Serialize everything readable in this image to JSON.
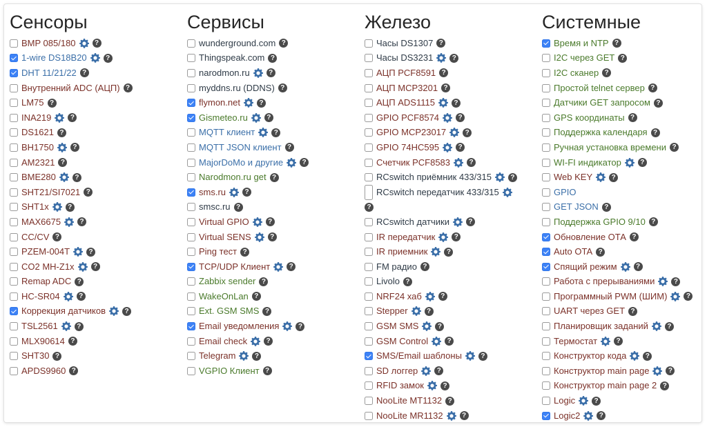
{
  "columns": [
    {
      "title": "Сенсоры",
      "items": [
        {
          "label": "BMP 085/180",
          "checked": false,
          "gear": true,
          "help": true,
          "color": "sensor"
        },
        {
          "label": "1-wire DS18B20",
          "checked": true,
          "gear": true,
          "help": true,
          "color": "blue"
        },
        {
          "label": "DHT 11/21/22",
          "checked": true,
          "gear": false,
          "help": true,
          "color": "blue"
        },
        {
          "label": "Внутренний ADC (АЦП)",
          "checked": false,
          "gear": false,
          "help": true,
          "color": "sensor"
        },
        {
          "label": "LM75",
          "checked": false,
          "gear": false,
          "help": true,
          "color": "sensor"
        },
        {
          "label": "INA219",
          "checked": false,
          "gear": true,
          "help": true,
          "color": "sensor"
        },
        {
          "label": "DS1621",
          "checked": false,
          "gear": false,
          "help": true,
          "color": "sensor"
        },
        {
          "label": "BH1750",
          "checked": false,
          "gear": true,
          "help": true,
          "color": "sensor"
        },
        {
          "label": "AM2321",
          "checked": false,
          "gear": false,
          "help": true,
          "color": "sensor"
        },
        {
          "label": "BME280",
          "checked": false,
          "gear": true,
          "help": true,
          "color": "sensor"
        },
        {
          "label": "SHT21/SI7021",
          "checked": false,
          "gear": false,
          "help": true,
          "color": "sensor"
        },
        {
          "label": "SHT1x",
          "checked": false,
          "gear": true,
          "help": true,
          "color": "sensor"
        },
        {
          "label": "MAX6675",
          "checked": false,
          "gear": true,
          "help": true,
          "color": "sensor"
        },
        {
          "label": "CC/CV",
          "checked": false,
          "gear": false,
          "help": true,
          "color": "sensor"
        },
        {
          "label": "PZEM-004T",
          "checked": false,
          "gear": true,
          "help": true,
          "color": "sensor"
        },
        {
          "label": "CO2 MH-Z1x",
          "checked": false,
          "gear": true,
          "help": true,
          "color": "sensor"
        },
        {
          "label": "Remap ADC",
          "checked": false,
          "gear": false,
          "help": true,
          "color": "sensor"
        },
        {
          "label": "HC-SR04",
          "checked": false,
          "gear": true,
          "help": true,
          "color": "sensor"
        },
        {
          "label": "Коррекция датчиков",
          "checked": true,
          "gear": true,
          "help": true,
          "color": "sensor"
        },
        {
          "label": "TSL2561",
          "checked": false,
          "gear": true,
          "help": true,
          "color": "sensor"
        },
        {
          "label": "MLX90614",
          "checked": false,
          "gear": false,
          "help": true,
          "color": "sensor"
        },
        {
          "label": "SHT30",
          "checked": false,
          "gear": false,
          "help": true,
          "color": "sensor"
        },
        {
          "label": "APDS9960",
          "checked": false,
          "gear": false,
          "help": true,
          "color": "sensor"
        }
      ]
    },
    {
      "title": "Сервисы",
      "items": [
        {
          "label": "wunderground.com",
          "checked": false,
          "gear": false,
          "help": true,
          "color": "service"
        },
        {
          "label": "Thingspeak.com",
          "checked": false,
          "gear": false,
          "help": true,
          "color": "service"
        },
        {
          "label": "narodmon.ru",
          "checked": false,
          "gear": true,
          "help": true,
          "color": "service"
        },
        {
          "label": "myddns.ru (DDNS)",
          "checked": false,
          "gear": false,
          "help": true,
          "color": "service"
        },
        {
          "label": "flymon.net",
          "checked": true,
          "gear": true,
          "help": true,
          "color": "sensor"
        },
        {
          "label": "Gismeteo.ru",
          "checked": true,
          "gear": true,
          "help": true,
          "color": "green"
        },
        {
          "label": "MQTT клиент",
          "checked": false,
          "gear": true,
          "help": true,
          "color": "blue"
        },
        {
          "label": "MQTT JSON клиент",
          "checked": false,
          "gear": false,
          "help": true,
          "color": "blue"
        },
        {
          "label": "MajorDoMo и другие",
          "checked": false,
          "gear": true,
          "help": true,
          "color": "blue"
        },
        {
          "label": "Narodmon.ru get",
          "checked": false,
          "gear": false,
          "help": true,
          "color": "green"
        },
        {
          "label": "sms.ru",
          "checked": true,
          "gear": true,
          "help": true,
          "color": "sensor"
        },
        {
          "label": "smsc.ru",
          "checked": false,
          "gear": false,
          "help": true,
          "color": "service"
        },
        {
          "label": "Virtual GPIO",
          "checked": false,
          "gear": true,
          "help": true,
          "color": "sensor"
        },
        {
          "label": "Virtual SENS",
          "checked": false,
          "gear": true,
          "help": true,
          "color": "sensor"
        },
        {
          "label": "Ping тест",
          "checked": false,
          "gear": false,
          "help": true,
          "color": "sensor"
        },
        {
          "label": "TCP/UDP Клиент",
          "checked": true,
          "gear": true,
          "help": true,
          "color": "sensor"
        },
        {
          "label": "Zabbix sender",
          "checked": false,
          "gear": false,
          "help": true,
          "color": "green"
        },
        {
          "label": "WakeOnLan",
          "checked": false,
          "gear": false,
          "help": true,
          "color": "green"
        },
        {
          "label": "Ext. GSM SMS",
          "checked": false,
          "gear": false,
          "help": true,
          "color": "green"
        },
        {
          "label": "Email уведомления",
          "checked": true,
          "gear": true,
          "help": true,
          "color": "sensor"
        },
        {
          "label": "Email check",
          "checked": false,
          "gear": true,
          "help": true,
          "color": "sensor"
        },
        {
          "label": "Telegram",
          "checked": false,
          "gear": true,
          "help": true,
          "color": "sensor"
        },
        {
          "label": "VGPIO Клиент",
          "checked": false,
          "gear": false,
          "help": true,
          "color": "green"
        }
      ]
    },
    {
      "title": "Железо",
      "items": [
        {
          "label": "Часы DS1307",
          "checked": false,
          "gear": false,
          "help": true,
          "color": "service"
        },
        {
          "label": "Часы DS3231",
          "checked": false,
          "gear": true,
          "help": true,
          "color": "service"
        },
        {
          "label": "АЦП PCF8591",
          "checked": false,
          "gear": false,
          "help": true,
          "color": "sensor"
        },
        {
          "label": "АЦП MCP3201",
          "checked": false,
          "gear": false,
          "help": true,
          "color": "sensor"
        },
        {
          "label": "АЦП ADS1115",
          "checked": false,
          "gear": true,
          "help": true,
          "color": "sensor"
        },
        {
          "label": "GPIO PCF8574",
          "checked": false,
          "gear": true,
          "help": true,
          "color": "sensor"
        },
        {
          "label": "GPIO MCP23017",
          "checked": false,
          "gear": true,
          "help": true,
          "color": "sensor"
        },
        {
          "label": "GPIO 74HC595",
          "checked": false,
          "gear": true,
          "help": true,
          "color": "sensor"
        },
        {
          "label": "Счетчик PCF8583",
          "checked": false,
          "gear": true,
          "help": true,
          "color": "sensor"
        },
        {
          "label": "RCswitch приёмник 433/315",
          "checked": false,
          "gear": true,
          "help": true,
          "color": "service"
        },
        {
          "label": "RCswitch передатчик 433/315",
          "checked": false,
          "gear": true,
          "help": true,
          "color": "service",
          "wrap": true
        },
        {
          "label": "RCswitch датчики",
          "checked": false,
          "gear": true,
          "help": true,
          "color": "service"
        },
        {
          "label": "IR передатчик",
          "checked": false,
          "gear": true,
          "help": true,
          "color": "sensor"
        },
        {
          "label": "IR приемник",
          "checked": false,
          "gear": true,
          "help": true,
          "color": "sensor"
        },
        {
          "label": "FM радио",
          "checked": false,
          "gear": false,
          "help": true,
          "color": "service"
        },
        {
          "label": "Livolo",
          "checked": false,
          "gear": false,
          "help": true,
          "color": "service"
        },
        {
          "label": "NRF24 хаб",
          "checked": false,
          "gear": true,
          "help": true,
          "color": "sensor"
        },
        {
          "label": "Stepper",
          "checked": false,
          "gear": true,
          "help": true,
          "color": "sensor"
        },
        {
          "label": "GSM SMS",
          "checked": false,
          "gear": true,
          "help": true,
          "color": "sensor"
        },
        {
          "label": "GSM Control",
          "checked": false,
          "gear": true,
          "help": true,
          "color": "sensor"
        },
        {
          "label": "SMS/Email шаблоны",
          "checked": true,
          "gear": true,
          "help": true,
          "color": "sensor"
        },
        {
          "label": "SD логгер",
          "checked": false,
          "gear": true,
          "help": true,
          "color": "sensor"
        },
        {
          "label": "RFID замок",
          "checked": false,
          "gear": true,
          "help": true,
          "color": "sensor"
        },
        {
          "label": "NooLite MT1132",
          "checked": false,
          "gear": false,
          "help": true,
          "color": "sensor"
        },
        {
          "label": "NooLite MR1132",
          "checked": false,
          "gear": true,
          "help": true,
          "color": "sensor"
        }
      ]
    },
    {
      "title": "Системные",
      "items": [
        {
          "label": "Время и NTP",
          "checked": true,
          "gear": false,
          "help": true,
          "color": "green"
        },
        {
          "label": "I2C через GET",
          "checked": false,
          "gear": false,
          "help": true,
          "color": "green"
        },
        {
          "label": "I2C сканер",
          "checked": false,
          "gear": false,
          "help": true,
          "color": "green"
        },
        {
          "label": "Простой telnet сервер",
          "checked": false,
          "gear": false,
          "help": true,
          "color": "green"
        },
        {
          "label": "Датчики GET запросом",
          "checked": false,
          "gear": false,
          "help": true,
          "color": "green"
        },
        {
          "label": "GPS координаты",
          "checked": false,
          "gear": false,
          "help": true,
          "color": "green"
        },
        {
          "label": "Поддержка календаря",
          "checked": false,
          "gear": false,
          "help": true,
          "color": "green"
        },
        {
          "label": "Ручная установка времени",
          "checked": false,
          "gear": false,
          "help": true,
          "color": "green"
        },
        {
          "label": "WI-FI индикатор",
          "checked": false,
          "gear": true,
          "help": true,
          "color": "green"
        },
        {
          "label": "Web KEY",
          "checked": false,
          "gear": true,
          "help": true,
          "color": "sensor"
        },
        {
          "label": "GPIO",
          "checked": false,
          "gear": false,
          "help": false,
          "color": "blue"
        },
        {
          "label": "GET JSON",
          "checked": false,
          "gear": false,
          "help": true,
          "color": "blue"
        },
        {
          "label": "Поддержка GPIO 9/10",
          "checked": false,
          "gear": false,
          "help": true,
          "color": "green"
        },
        {
          "label": "Обновление ОТА",
          "checked": true,
          "gear": false,
          "help": true,
          "color": "sensor"
        },
        {
          "label": "Auto OTA",
          "checked": true,
          "gear": false,
          "help": true,
          "color": "sensor"
        },
        {
          "label": "Спящий режим",
          "checked": true,
          "gear": true,
          "help": true,
          "color": "sensor"
        },
        {
          "label": "Работа с прерываниями",
          "checked": false,
          "gear": true,
          "help": true,
          "color": "sensor"
        },
        {
          "label": "Программный PWM (ШИМ)",
          "checked": false,
          "gear": true,
          "help": true,
          "color": "sensor"
        },
        {
          "label": "UART через GET",
          "checked": false,
          "gear": false,
          "help": true,
          "color": "sensor"
        },
        {
          "label": "Планировщик заданий",
          "checked": false,
          "gear": true,
          "help": true,
          "color": "sensor"
        },
        {
          "label": "Термостат",
          "checked": false,
          "gear": true,
          "help": true,
          "color": "sensor"
        },
        {
          "label": "Конструктор кода",
          "checked": false,
          "gear": true,
          "help": true,
          "color": "sensor"
        },
        {
          "label": "Конструктор main page",
          "checked": false,
          "gear": true,
          "help": true,
          "color": "sensor"
        },
        {
          "label": "Конструктор main page 2",
          "checked": false,
          "gear": false,
          "help": true,
          "color": "sensor"
        },
        {
          "label": "Logic",
          "checked": false,
          "gear": true,
          "help": true,
          "color": "sensor"
        },
        {
          "label": "Logic2",
          "checked": true,
          "gear": true,
          "help": true,
          "color": "sensor"
        }
      ]
    }
  ],
  "colors": {
    "sensor": "#7b3129",
    "service": "#2f3b47",
    "blue": "#3b6fa8",
    "green": "#4a7a2b",
    "checkbox_checked": "#3d82f6",
    "help_icon": "#4a4a4a",
    "gear_icon": "#3a6ea8"
  },
  "icons": {
    "gear": "gear-icon",
    "help": "question-circle-icon",
    "help_glyph": "?"
  }
}
